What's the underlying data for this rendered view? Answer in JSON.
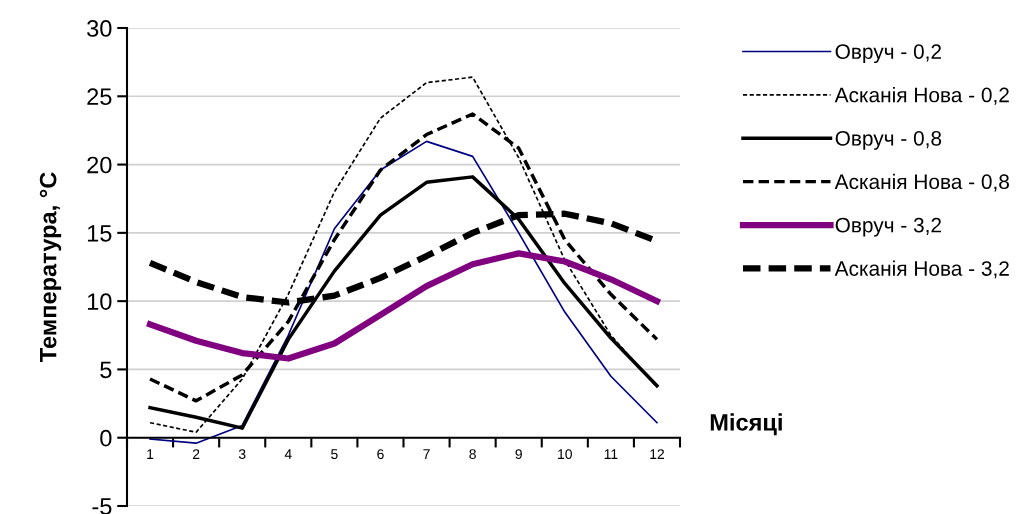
{
  "chart_data": {
    "type": "line",
    "ylabel": "Температура, °C",
    "xlabel": "Місяці",
    "categories": [
      "1",
      "2",
      "3",
      "4",
      "5",
      "6",
      "7",
      "8",
      "9",
      "10",
      "11",
      "12"
    ],
    "ylim": [
      -5,
      30
    ],
    "yticks": [
      -5,
      0,
      5,
      10,
      15,
      20,
      25,
      30
    ],
    "grid": "y",
    "legend": "right",
    "marker": "none",
    "series": [
      {
        "name": "Овруч - 0,2",
        "color": "#000080",
        "line_style": "solid",
        "values": [
          -0.1,
          -0.4,
          0.9,
          7.5,
          15.3,
          19.6,
          21.7,
          20.6,
          15,
          9.2,
          4.5,
          1.1
        ]
      },
      {
        "name": "Асканія Нова - 0,2",
        "color": "#000000",
        "line_style": "dashed",
        "values": [
          1.1,
          0.4,
          4.3,
          10.5,
          18,
          23.4,
          26,
          26.4,
          20.5,
          13,
          7.5,
          3.7
        ]
      },
      {
        "name": "Овруч - 0,8",
        "color": "#000000",
        "line_style": "solid",
        "values": [
          2.2,
          1.5,
          0.7,
          7.2,
          12.2,
          16.3,
          18.7,
          19.1,
          16,
          11.3,
          7.3,
          3.8
        ]
      },
      {
        "name": "Асканія Нова - 0,8",
        "color": "#000000",
        "line_style": "dashed",
        "values": [
          4.3,
          2.7,
          4.6,
          8.5,
          14.5,
          19.6,
          22.2,
          23.7,
          21.2,
          14.5,
          10.5,
          7.2
        ]
      },
      {
        "name": "Овруч - 3,2",
        "color": "#800080",
        "line_style": "solid",
        "values": [
          8.3,
          7.1,
          6.2,
          5.8,
          6.9,
          9,
          11.1,
          12.7,
          13.5,
          12.9,
          11.6,
          10.0
        ]
      },
      {
        "name": "Асканія Нова - 3,2",
        "color": "#000000",
        "line_style": "dashed",
        "values": [
          12.8,
          11.4,
          10.3,
          9.9,
          10.4,
          11.7,
          13.3,
          15,
          16.3,
          16.4,
          15.7,
          14.4
        ]
      }
    ]
  }
}
